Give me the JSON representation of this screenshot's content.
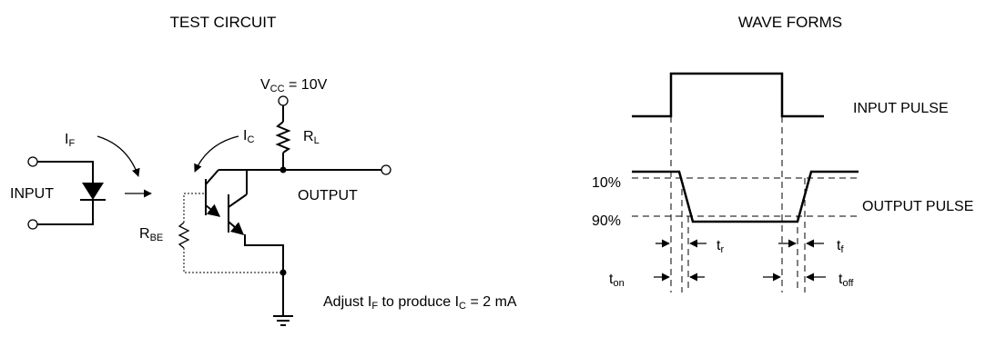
{
  "test_circuit": {
    "title": "TEST CIRCUIT",
    "vcc": {
      "main": "V",
      "sub": "CC",
      "rest": " = 10V"
    },
    "if_label": {
      "main": "I",
      "sub": "F"
    },
    "ic_label": {
      "main": "I",
      "sub": "C"
    },
    "rl_label": {
      "main": "R",
      "sub": "L"
    },
    "rbe_label": {
      "main": "R",
      "sub": "BE"
    },
    "input_label": "INPUT",
    "output_label": "OUTPUT",
    "note": {
      "part1": "Adjust I",
      "part1_sub": "F",
      "part2": " to produce I",
      "part2_sub": "C",
      "part3": " = 2 mA"
    }
  },
  "wave_forms": {
    "title": "WAVE FORMS",
    "input_pulse": "INPUT PULSE",
    "output_pulse": "OUTPUT PULSE",
    "level_10": "10%",
    "level_90": "90%",
    "tr": {
      "main": "t",
      "sub": "r"
    },
    "tf": {
      "main": "t",
      "sub": "f"
    },
    "ton": {
      "main": "t",
      "sub": "on"
    },
    "toff": {
      "main": "t",
      "sub": "off"
    }
  }
}
